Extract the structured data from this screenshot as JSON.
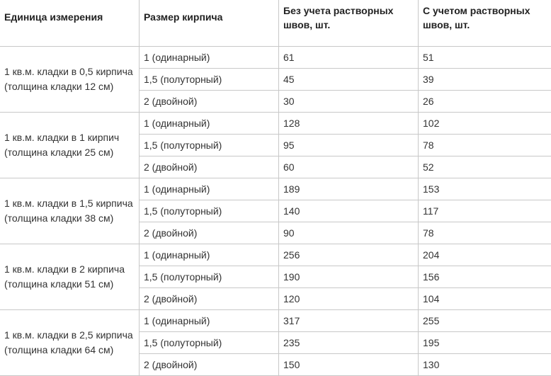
{
  "headers": [
    "Единица измерения",
    "Размер кирпича",
    "Без учета растворных швов, шт.",
    "С учетом растворных швов, шт."
  ],
  "groups": [
    {
      "unit": "1 кв.м. кладки в 0,5 кирпича (толщина кладки 12 см)",
      "rows": [
        {
          "size": "1 (одинарный)",
          "without": "61",
          "with": "51"
        },
        {
          "size": "1,5 (полуторный)",
          "without": "45",
          "with": "39"
        },
        {
          "size": "2 (двойной)",
          "without": "30",
          "with": "26"
        }
      ]
    },
    {
      "unit": "1 кв.м. кладки в 1 кирпич (толщина кладки 25 см)",
      "rows": [
        {
          "size": "1 (одинарный)",
          "without": "128",
          "with": "102"
        },
        {
          "size": "1,5 (полуторный)",
          "without": "95",
          "with": "78"
        },
        {
          "size": "2 (двойной)",
          "without": "60",
          "with": "52"
        }
      ]
    },
    {
      "unit": "1 кв.м. кладки в 1,5 кирпича (толщина кладки 38 см)",
      "rows": [
        {
          "size": "1 (одинарный)",
          "without": "189",
          "with": "153"
        },
        {
          "size": "1,5 (полуторный)",
          "without": "140",
          "with": "117"
        },
        {
          "size": "2 (двойной)",
          "without": "90",
          "with": "78"
        }
      ]
    },
    {
      "unit": "1 кв.м. кладки в 2 кирпича (толщина кладки 51 см)",
      "rows": [
        {
          "size": "1 (одинарный)",
          "without": "256",
          "with": "204"
        },
        {
          "size": "1,5 (полуторный)",
          "without": "190",
          "with": "156"
        },
        {
          "size": "2 (двойной)",
          "without": "120",
          "with": "104"
        }
      ]
    },
    {
      "unit": "1 кв.м. кладки в 2,5 кирпича (толщина кладки 64 см)",
      "rows": [
        {
          "size": "1 (одинарный)",
          "without": "317",
          "with": "255"
        },
        {
          "size": "1,5 (полуторный)",
          "without": "235",
          "with": "195"
        },
        {
          "size": "2 (двойной)",
          "without": "150",
          "with": "130"
        }
      ]
    }
  ]
}
